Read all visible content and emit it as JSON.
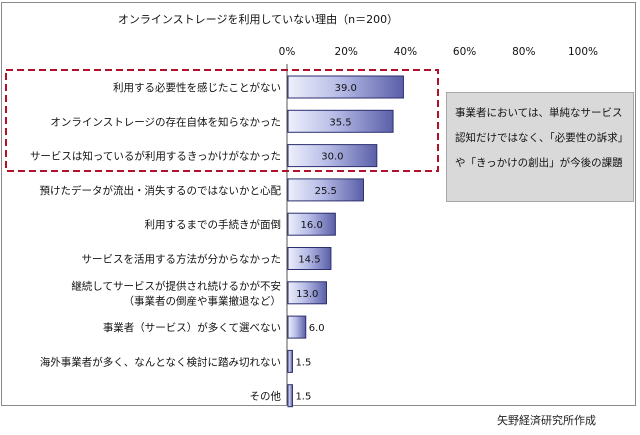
{
  "chart_data": {
    "type": "bar",
    "orientation": "horizontal",
    "title": "オンラインストレージを利用していない理由（n＝200）",
    "xlabel": "",
    "ylabel": "",
    "xlim": [
      0,
      100
    ],
    "xticks": [
      "0%",
      "20%",
      "40%",
      "60%",
      "80%",
      "100%"
    ],
    "grid": false,
    "categories": [
      [
        "利用する必要性を感じたことがない"
      ],
      [
        "オンラインストレージの存在自体を知らなかった"
      ],
      [
        "サービスは知っているが利用するきっかけがなかった"
      ],
      [
        "預けたデータが流出・消失するのではないかと心配"
      ],
      [
        "利用するまでの手続きが面倒"
      ],
      [
        "サービスを活用する方法が分からなかった"
      ],
      [
        "継続してサービスが提供され続けるかが不安",
        "（事業者の倒産や事業撤退など）"
      ],
      [
        "事業者（サービス）が多くて選べない"
      ],
      [
        "海外事業者が多く、なんとなく検討に踏み切れない"
      ],
      [
        "その他"
      ]
    ],
    "values": [
      39.0,
      35.5,
      30.0,
      25.5,
      16.0,
      14.5,
      13.0,
      6.0,
      1.5,
      1.5
    ],
    "data_labels": [
      "39.0",
      "35.5",
      "30.0",
      "25.5",
      "16.0",
      "14.5",
      "13.0",
      "6.0",
      "1.5",
      "1.5"
    ],
    "highlight_rows": [
      0,
      1,
      2
    ],
    "colors": {
      "bar": "#5a5fa8",
      "bar_edge": "#2c2f6e",
      "highlight_box": "#b0102a"
    }
  },
  "callout": {
    "lines": [
      "事業者においては、単純なサービス",
      "認知だけではなく、「必要性の訴求」",
      "や「きっかけの創出」が今後の課題"
    ]
  },
  "credit": "矢野経済研究所作成"
}
